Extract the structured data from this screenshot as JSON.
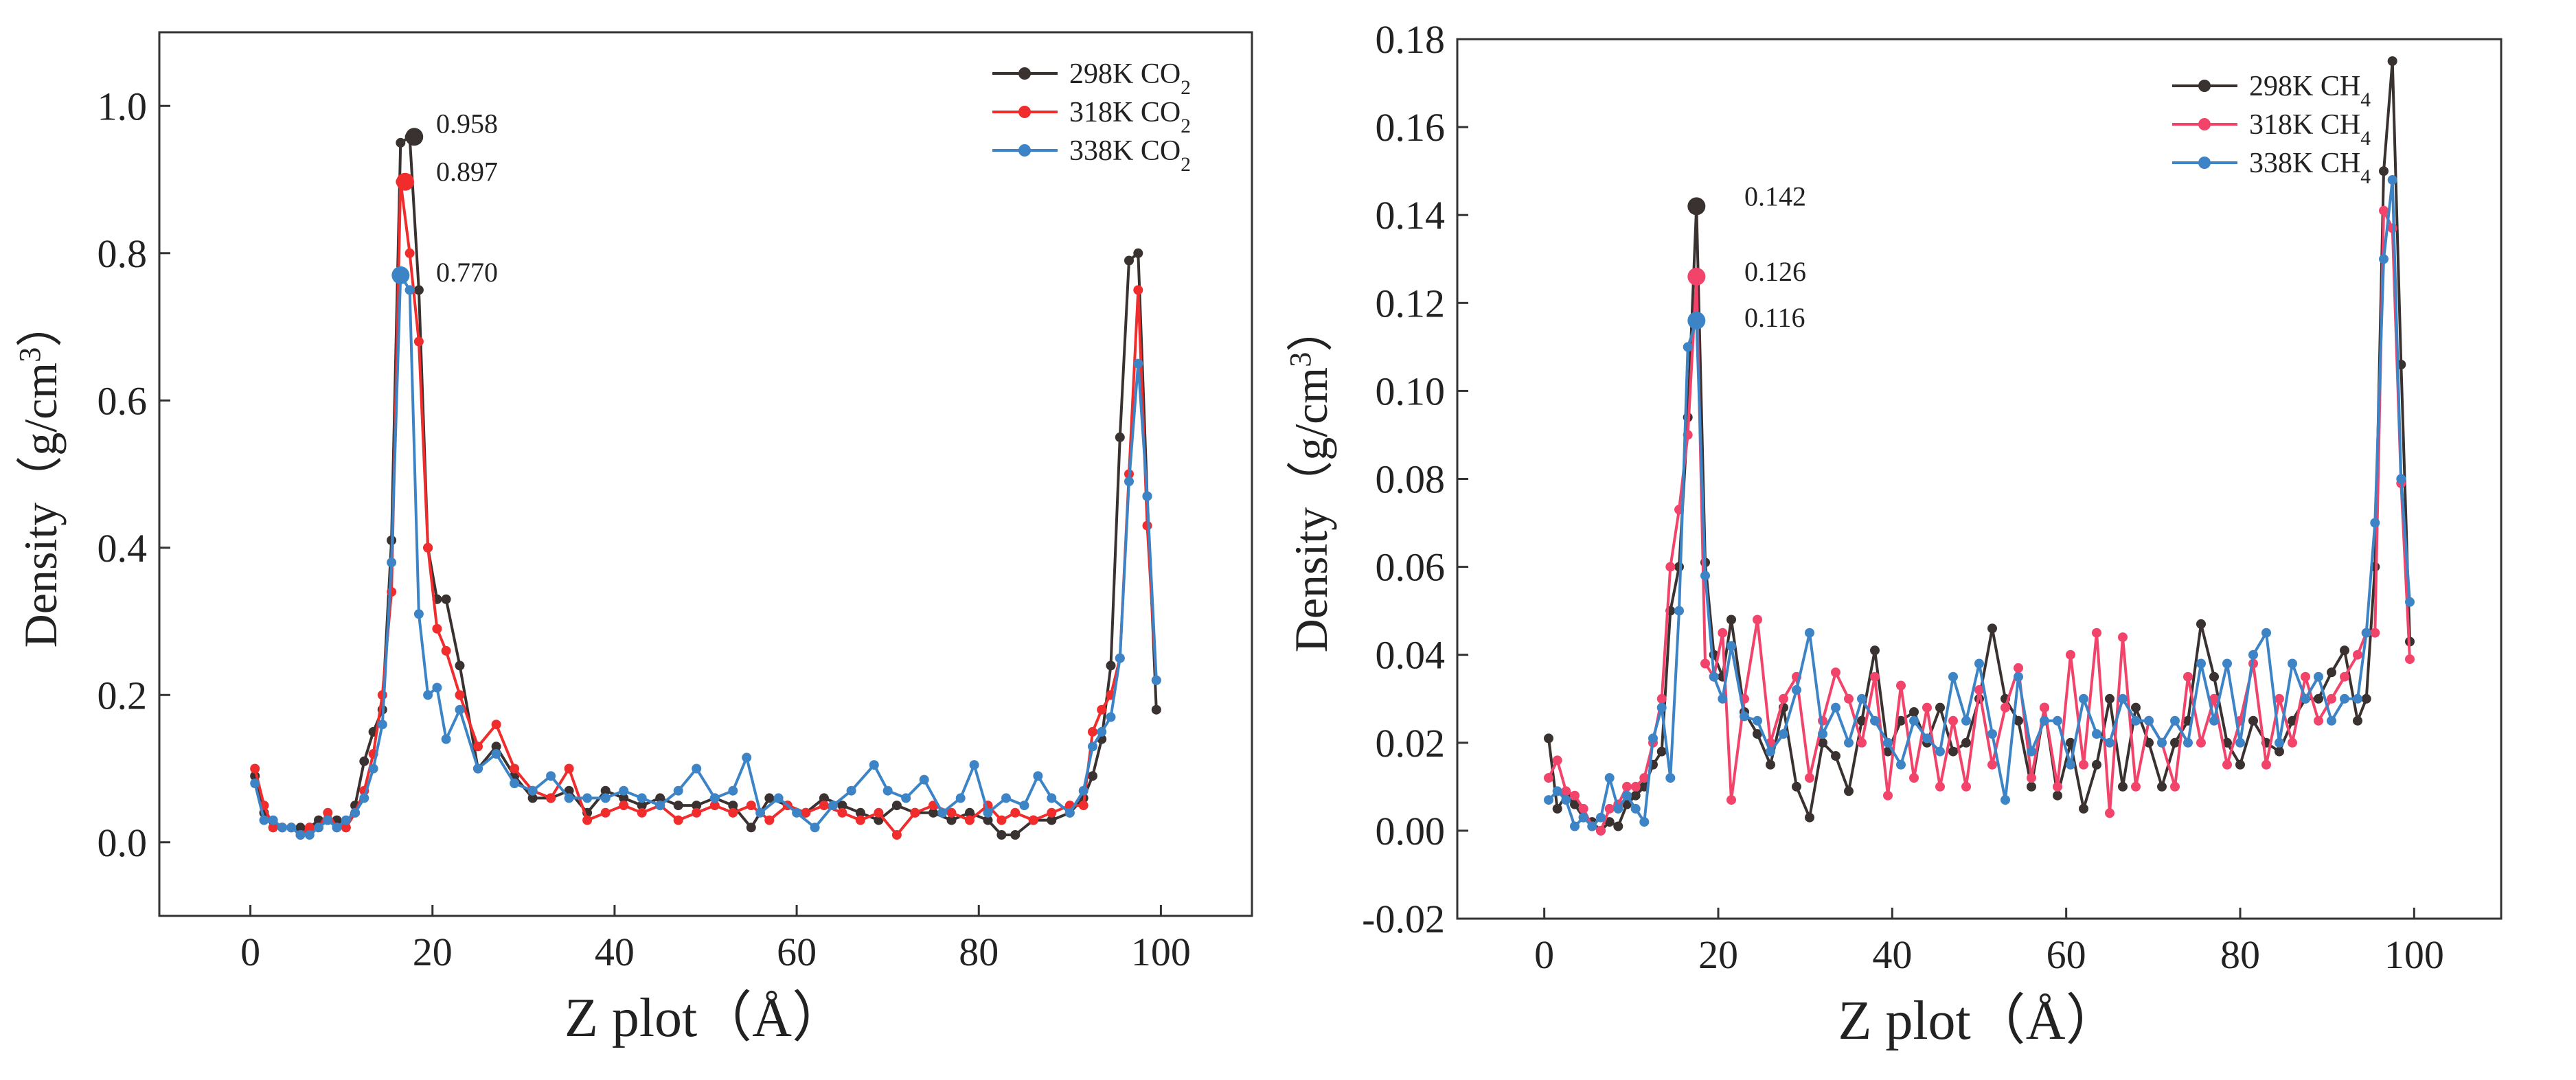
{
  "chart_data": [
    {
      "type": "line",
      "xlabel": "Z plot（Å）",
      "ylabel": "Density（g/cm3）",
      "xlim": [
        -10,
        110
      ],
      "ylim": [
        -0.1,
        1.1
      ],
      "xticks": [
        0,
        20,
        40,
        60,
        80,
        100
      ],
      "yticks": [
        0.0,
        0.2,
        0.4,
        0.6,
        0.8,
        1.0
      ],
      "ytick_decimals": 1,
      "grid": false,
      "legend_position": "top-right",
      "series": [
        {
          "name": "298K CO2",
          "color": "#3a3230",
          "x": [
            0.5,
            1.5,
            2.5,
            3.5,
            4.5,
            5.5,
            6.5,
            7.5,
            8.5,
            9.5,
            10.5,
            11.5,
            12.5,
            13.5,
            14.5,
            15.5,
            16.5,
            17.5,
            18.5,
            19.5,
            20.5,
            21.5,
            23,
            25,
            27,
            29,
            31,
            33,
            35,
            37,
            39,
            41,
            43,
            45,
            47,
            49,
            51,
            53,
            55,
            57,
            59,
            61,
            63,
            65,
            67,
            69,
            71,
            73,
            75,
            77,
            79,
            81,
            82.5,
            84,
            86,
            88,
            90,
            91.5,
            92.5,
            93.5,
            94.5,
            95.5,
            96.5,
            97.5,
            98.5,
            99.5
          ],
          "y": [
            0.09,
            0.04,
            0.02,
            0.02,
            0.02,
            0.02,
            0.02,
            0.03,
            0.03,
            0.03,
            0.02,
            0.05,
            0.11,
            0.15,
            0.18,
            0.41,
            0.95,
            0.958,
            0.75,
            0.4,
            0.33,
            0.33,
            0.24,
            0.1,
            0.13,
            0.09,
            0.06,
            0.06,
            0.07,
            0.04,
            0.07,
            0.06,
            0.05,
            0.06,
            0.05,
            0.05,
            0.06,
            0.05,
            0.02,
            0.06,
            0.05,
            0.04,
            0.06,
            0.05,
            0.04,
            0.03,
            0.05,
            0.04,
            0.04,
            0.03,
            0.04,
            0.03,
            0.01,
            0.01,
            0.03,
            0.03,
            0.04,
            0.06,
            0.09,
            0.14,
            0.24,
            0.55,
            0.79,
            0.8,
            0.47,
            0.18
          ]
        },
        {
          "name": "318K CO2",
          "color": "#f02c2c",
          "x": [
            0.5,
            1.5,
            2.5,
            3.5,
            4.5,
            5.5,
            6.5,
            7.5,
            8.5,
            9.5,
            10.5,
            11.5,
            12.5,
            13.5,
            14.5,
            15.5,
            16.5,
            17.5,
            18.5,
            19.5,
            20.5,
            21.5,
            23,
            25,
            27,
            29,
            31,
            33,
            35,
            37,
            39,
            41,
            43,
            45,
            47,
            49,
            51,
            53,
            55,
            57,
            59,
            61,
            63,
            65,
            67,
            69,
            71,
            73,
            75,
            77,
            79,
            81,
            82.5,
            84,
            86,
            88,
            90,
            91.5,
            92.5,
            93.5,
            94.5,
            95.5,
            96.5,
            97.5,
            98.5,
            99.5
          ],
          "y": [
            0.1,
            0.05,
            0.02,
            0.02,
            0.02,
            0.01,
            0.02,
            0.02,
            0.04,
            0.02,
            0.02,
            0.04,
            0.07,
            0.12,
            0.2,
            0.34,
            0.897,
            0.8,
            0.68,
            0.4,
            0.29,
            0.26,
            0.2,
            0.13,
            0.16,
            0.1,
            0.07,
            0.06,
            0.1,
            0.03,
            0.04,
            0.05,
            0.04,
            0.05,
            0.03,
            0.04,
            0.05,
            0.04,
            0.05,
            0.03,
            0.05,
            0.04,
            0.05,
            0.04,
            0.03,
            0.04,
            0.01,
            0.04,
            0.05,
            0.04,
            0.03,
            0.05,
            0.03,
            0.04,
            0.03,
            0.04,
            0.05,
            0.05,
            0.15,
            0.18,
            0.2,
            0.25,
            0.5,
            0.75,
            0.43,
            0.22
          ]
        },
        {
          "name": "338K CO2",
          "color": "#3d84c6",
          "x": [
            0.5,
            1.5,
            2.5,
            3.5,
            4.5,
            5.5,
            6.5,
            7.5,
            8.5,
            9.5,
            10.5,
            11.5,
            12.5,
            13.5,
            14.5,
            15.5,
            16.5,
            17.5,
            18.5,
            19.5,
            20.5,
            21.5,
            23,
            25,
            27,
            29,
            31,
            33,
            35,
            37,
            39,
            41,
            43,
            45,
            47,
            49,
            51,
            53,
            54.5,
            56,
            58,
            60,
            62,
            64,
            66,
            68.5,
            70,
            72,
            74,
            76,
            78,
            79.5,
            81,
            83,
            85,
            86.5,
            88,
            90,
            91.5,
            92.5,
            93.5,
            94.5,
            95.5,
            96.5,
            97.5,
            98.5,
            99.5
          ],
          "y": [
            0.08,
            0.03,
            0.03,
            0.02,
            0.02,
            0.01,
            0.01,
            0.02,
            0.03,
            0.02,
            0.03,
            0.04,
            0.06,
            0.1,
            0.16,
            0.38,
            0.77,
            0.75,
            0.31,
            0.2,
            0.21,
            0.14,
            0.18,
            0.1,
            0.12,
            0.08,
            0.07,
            0.09,
            0.06,
            0.06,
            0.06,
            0.07,
            0.06,
            0.05,
            0.07,
            0.1,
            0.06,
            0.07,
            0.115,
            0.04,
            0.06,
            0.04,
            0.02,
            0.05,
            0.07,
            0.105,
            0.07,
            0.06,
            0.085,
            0.04,
            0.06,
            0.105,
            0.04,
            0.06,
            0.05,
            0.09,
            0.06,
            0.04,
            0.07,
            0.13,
            0.15,
            0.17,
            0.25,
            0.49,
            0.65,
            0.47,
            0.22
          ]
        }
      ],
      "annotations": [
        {
          "text": "0.958",
          "x": 18,
          "y": 0.958,
          "color": "#3a3230"
        },
        {
          "text": "0.897",
          "x": 17,
          "y": 0.897,
          "color": "#f02c2c"
        },
        {
          "text": "0.770",
          "x": 16.5,
          "y": 0.77,
          "color": "#3d84c6"
        }
      ]
    },
    {
      "type": "line",
      "xlabel": "Z plot（Å）",
      "ylabel": "Density（g/cm3）",
      "xlim": [
        -10,
        110
      ],
      "ylim": [
        -0.02,
        0.18
      ],
      "xticks": [
        0,
        20,
        40,
        60,
        80,
        100
      ],
      "yticks": [
        -0.02,
        0.0,
        0.02,
        0.04,
        0.06,
        0.08,
        0.1,
        0.12,
        0.14,
        0.16,
        0.18
      ],
      "ytick_decimals": 2,
      "grid": false,
      "legend_position": "top-right",
      "series": [
        {
          "name": "298K CH4",
          "color": "#3a3230",
          "x": [
            0.5,
            1.5,
            2.5,
            3.5,
            4.5,
            5.5,
            6.5,
            7.5,
            8.5,
            9.5,
            10.5,
            11.5,
            12.5,
            13.5,
            14.5,
            15.5,
            16.5,
            17.5,
            18.5,
            19.5,
            20.5,
            21.5,
            23,
            24.5,
            26,
            27.5,
            29,
            30.5,
            32,
            33.5,
            35,
            36.5,
            38,
            39.5,
            41,
            42.5,
            44,
            45.5,
            47,
            48.5,
            50,
            51.5,
            53,
            54.5,
            56,
            57.5,
            59,
            60.5,
            62,
            63.5,
            65,
            66.5,
            68,
            69.5,
            71,
            72.5,
            74,
            75.5,
            77,
            78.5,
            80,
            81.5,
            83,
            84.5,
            86,
            87.5,
            89,
            90.5,
            92,
            93.5,
            94.5,
            95.5,
            96.5,
            97.5,
            98.5,
            99.5
          ],
          "y": [
            0.021,
            0.005,
            0.008,
            0.006,
            0.003,
            0.002,
            0.0,
            0.002,
            0.001,
            0.006,
            0.008,
            0.01,
            0.015,
            0.018,
            0.05,
            0.06,
            0.094,
            0.142,
            0.061,
            0.04,
            0.035,
            0.048,
            0.027,
            0.022,
            0.015,
            0.028,
            0.01,
            0.003,
            0.02,
            0.017,
            0.009,
            0.025,
            0.041,
            0.018,
            0.025,
            0.027,
            0.02,
            0.028,
            0.018,
            0.02,
            0.03,
            0.046,
            0.03,
            0.025,
            0.01,
            0.028,
            0.008,
            0.02,
            0.005,
            0.015,
            0.03,
            0.01,
            0.028,
            0.02,
            0.01,
            0.02,
            0.025,
            0.047,
            0.035,
            0.02,
            0.015,
            0.025,
            0.02,
            0.018,
            0.025,
            0.03,
            0.03,
            0.036,
            0.041,
            0.025,
            0.03,
            0.06,
            0.15,
            0.175,
            0.106,
            0.043
          ]
        },
        {
          "name": "318K CH4",
          "color": "#f2436a",
          "x": [
            0.5,
            1.5,
            2.5,
            3.5,
            4.5,
            5.5,
            6.5,
            7.5,
            8.5,
            9.5,
            10.5,
            11.5,
            12.5,
            13.5,
            14.5,
            15.5,
            16.5,
            17.5,
            18.5,
            19.5,
            20.5,
            21.5,
            23,
            24.5,
            26,
            27.5,
            29,
            30.5,
            32,
            33.5,
            35,
            36.5,
            38,
            39.5,
            41,
            42.5,
            44,
            45.5,
            47,
            48.5,
            50,
            51.5,
            53,
            54.5,
            56,
            57.5,
            59,
            60.5,
            62,
            63.5,
            65,
            66.5,
            68,
            69.5,
            71,
            72.5,
            74,
            75.5,
            77,
            78.5,
            80,
            81.5,
            83,
            84.5,
            86,
            87.5,
            89,
            90.5,
            92,
            93.5,
            94.5,
            95.5,
            96.5,
            97.5,
            98.5,
            99.5
          ],
          "y": [
            0.012,
            0.016,
            0.009,
            0.008,
            0.005,
            0.001,
            0.0,
            0.005,
            0.006,
            0.01,
            0.01,
            0.012,
            0.02,
            0.03,
            0.06,
            0.073,
            0.09,
            0.126,
            0.038,
            0.035,
            0.045,
            0.007,
            0.03,
            0.048,
            0.02,
            0.03,
            0.035,
            0.012,
            0.025,
            0.036,
            0.03,
            0.02,
            0.035,
            0.008,
            0.033,
            0.012,
            0.028,
            0.01,
            0.025,
            0.01,
            0.032,
            0.015,
            0.028,
            0.037,
            0.012,
            0.028,
            0.01,
            0.04,
            0.015,
            0.045,
            0.004,
            0.044,
            0.01,
            0.025,
            0.02,
            0.01,
            0.035,
            0.02,
            0.03,
            0.015,
            0.025,
            0.038,
            0.015,
            0.03,
            0.02,
            0.035,
            0.025,
            0.03,
            0.035,
            0.04,
            0.045,
            0.045,
            0.141,
            0.137,
            0.079,
            0.039
          ]
        },
        {
          "name": "338K CH4",
          "color": "#3d84c6",
          "x": [
            0.5,
            1.5,
            2.5,
            3.5,
            4.5,
            5.5,
            6.5,
            7.5,
            8.5,
            9.5,
            10.5,
            11.5,
            12.5,
            13.5,
            14.5,
            15.5,
            16.5,
            17.5,
            18.5,
            19.5,
            20.5,
            21.5,
            23,
            24.5,
            26,
            27.5,
            29,
            30.5,
            32,
            33.5,
            35,
            36.5,
            38,
            39.5,
            41,
            42.5,
            44,
            45.5,
            47,
            48.5,
            50,
            51.5,
            53,
            54.5,
            56,
            57.5,
            59,
            60.5,
            62,
            63.5,
            65,
            66.5,
            68,
            69.5,
            71,
            72.5,
            74,
            75.5,
            77,
            78.5,
            80,
            81.5,
            83,
            84.5,
            86,
            87.5,
            89,
            90.5,
            92,
            93.5,
            94.5,
            95.5,
            96.5,
            97.5,
            98.5,
            99.5
          ],
          "y": [
            0.007,
            0.009,
            0.007,
            0.001,
            0.003,
            0.001,
            0.003,
            0.012,
            0.005,
            0.008,
            0.005,
            0.002,
            0.021,
            0.028,
            0.012,
            0.05,
            0.11,
            0.116,
            0.058,
            0.035,
            0.03,
            0.042,
            0.026,
            0.025,
            0.018,
            0.022,
            0.032,
            0.045,
            0.022,
            0.028,
            0.02,
            0.03,
            0.025,
            0.02,
            0.015,
            0.025,
            0.021,
            0.018,
            0.035,
            0.025,
            0.038,
            0.022,
            0.007,
            0.035,
            0.018,
            0.025,
            0.025,
            0.015,
            0.03,
            0.022,
            0.02,
            0.03,
            0.025,
            0.025,
            0.02,
            0.025,
            0.02,
            0.038,
            0.025,
            0.038,
            0.02,
            0.04,
            0.045,
            0.02,
            0.038,
            0.03,
            0.035,
            0.025,
            0.03,
            0.03,
            0.045,
            0.07,
            0.13,
            0.148,
            0.08,
            0.052
          ]
        }
      ],
      "annotations": [
        {
          "text": "0.142",
          "x": 17.5,
          "y": 0.142,
          "color": "#3a3230"
        },
        {
          "text": "0.126",
          "x": 17.5,
          "y": 0.126,
          "color": "#f2436a"
        },
        {
          "text": "0.116",
          "x": 17.5,
          "y": 0.116,
          "color": "#3d84c6"
        }
      ]
    }
  ]
}
